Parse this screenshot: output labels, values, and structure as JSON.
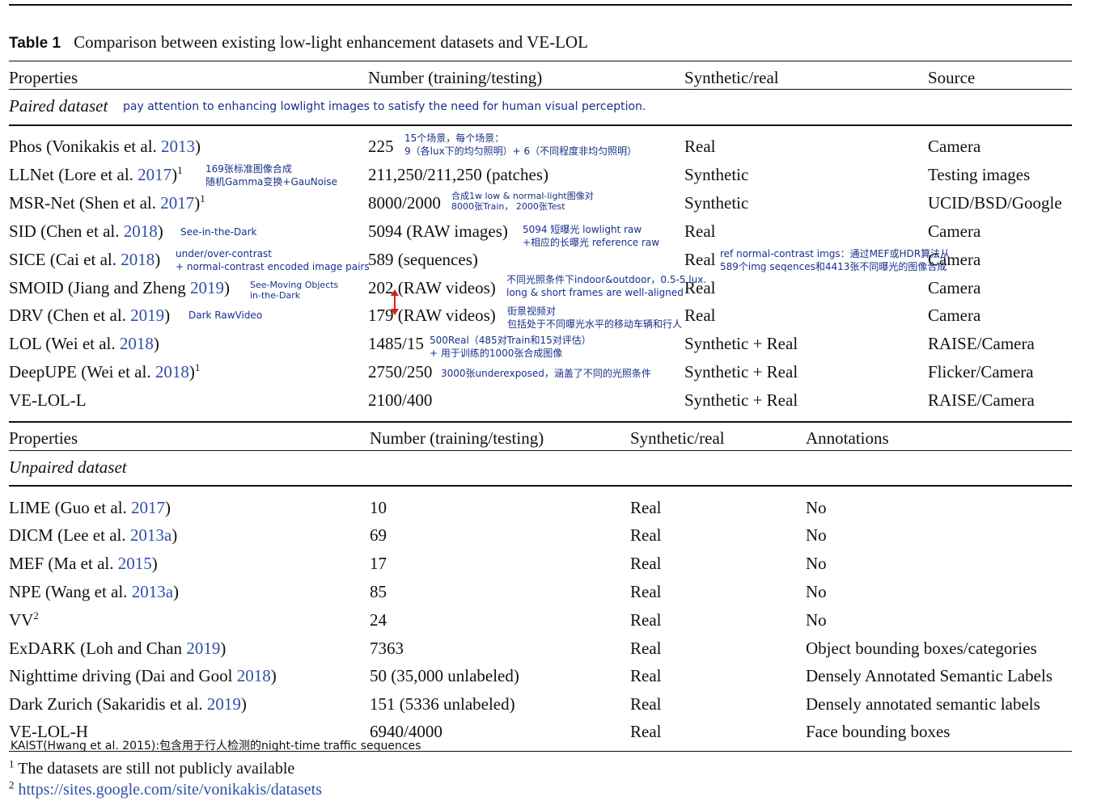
{
  "caption": {
    "label": "Table 1",
    "text": "Comparison between existing low-light enhancement datasets and VE-LOL"
  },
  "paired": {
    "headers": [
      "Properties",
      "Number (training/testing)",
      "Synthetic/real",
      "Source"
    ],
    "section_label": "Paired dataset",
    "section_note": "pay attention to enhancing lowlight images to satisfy the need for human visual perception.",
    "rows": [
      {
        "name": "Phos (Vonikakis et al. ",
        "year": "2013",
        "end": ")",
        "sup": "",
        "number": "225",
        "type": "Real",
        "source": "Camera"
      },
      {
        "name": "LLNet (Lore et al. ",
        "year": "2017",
        "end": ")",
        "sup": "1",
        "number": "211,250/211,250 (patches)",
        "type": "Synthetic",
        "source": "Testing images"
      },
      {
        "name": "MSR-Net (Shen et al. ",
        "year": "2017",
        "end": ")",
        "sup": "1",
        "number": "8000/2000",
        "type": "Synthetic",
        "source": "UCID/BSD/Google"
      },
      {
        "name": "SID (Chen et al. ",
        "year": "2018",
        "end": ")",
        "sup": "",
        "number": "5094 (RAW images)",
        "type": "Real",
        "source": "Camera"
      },
      {
        "name": "SICE (Cai et al. ",
        "year": "2018",
        "end": ")",
        "sup": "",
        "number": "589 (sequences)",
        "type": "Real",
        "source": "Camera"
      },
      {
        "name": "SMOID (Jiang and Zheng ",
        "year": "2019",
        "end": ")",
        "sup": "",
        "number": "202 (RAW videos)",
        "type": "Real",
        "source": "Camera"
      },
      {
        "name": "DRV (Chen et al. ",
        "year": "2019",
        "end": ")",
        "sup": "",
        "number": "179 (RAW videos)",
        "type": "Real",
        "source": "Camera"
      },
      {
        "name": "LOL (Wei et al. ",
        "year": "2018",
        "end": ")",
        "sup": "",
        "number": "1485/15",
        "type": "Synthetic + Real",
        "source": "RAISE/Camera"
      },
      {
        "name": "DeepUPE (Wei et al. ",
        "year": "2018",
        "end": ")",
        "sup": "1",
        "number": "2750/250",
        "type": "Synthetic + Real",
        "source": "Flicker/Camera"
      },
      {
        "name": "VE-LOL-L",
        "year": "",
        "end": "",
        "sup": "",
        "number": "2100/400",
        "type": "Synthetic + Real",
        "source": "RAISE/Camera"
      }
    ]
  },
  "unpaired": {
    "headers": [
      "Properties",
      "Number (training/testing)",
      "Synthetic/real",
      "Annotations"
    ],
    "section_label": "Unpaired dataset",
    "rows": [
      {
        "name": "LIME (Guo et al. ",
        "year": "2017",
        "end": ")",
        "sup": "",
        "number": "10",
        "type": "Real",
        "annotations": "No"
      },
      {
        "name": "DICM (Lee et al. ",
        "year": "2013a",
        "end": ")",
        "sup": "",
        "number": "69",
        "type": "Real",
        "annotations": "No"
      },
      {
        "name": "MEF (Ma et al. ",
        "year": "2015",
        "end": ")",
        "sup": "",
        "number": "17",
        "type": "Real",
        "annotations": "No"
      },
      {
        "name": "NPE (Wang et al. ",
        "year": "2013a",
        "end": ")",
        "sup": "",
        "number": "85",
        "type": "Real",
        "annotations": "No"
      },
      {
        "name": "VV",
        "year": "",
        "end": "",
        "sup": "2",
        "number": "24",
        "type": "Real",
        "annotations": "No"
      },
      {
        "name": "ExDARK (Loh and Chan ",
        "year": "2019",
        "end": ")",
        "sup": "",
        "number": "7363",
        "type": "Real",
        "annotations": "Object bounding boxes/categories"
      },
      {
        "name": "Nighttime driving (Dai and Gool ",
        "year": "2018",
        "end": ")",
        "sup": "",
        "number": "50 (35,000 unlabeled)",
        "type": "Real",
        "annotations": "Densely Annotated Semantic Labels"
      },
      {
        "name": "Dark Zurich (Sakaridis et al. ",
        "year": "2019",
        "end": ")",
        "sup": "",
        "number": "151 (5336 unlabeled)",
        "type": "Real",
        "annotations": "Densely annotated semantic labels"
      },
      {
        "name": "VE-LOL-H",
        "year": "",
        "end": "",
        "sup": "",
        "number": "6940/4000",
        "type": "Real",
        "annotations": "Face bounding boxes"
      }
    ]
  },
  "annotations": {
    "phos_1": "15个场景，每个场景：",
    "phos_2": "9（各lux下的均匀照明）+ 6（不同程度非均匀照明）",
    "llnet_1": "169张标准图像合成",
    "llnet_2": "随机Gamma变换+GauNoise",
    "msr_1": "合成1w low & normal-light图像对",
    "msr_2": "8000张Train，  2000张Test",
    "sid_a": "See-in-the-Dark",
    "sid_b1": "5094 短曝光 lowlight raw",
    "sid_b2": "+相应的长曝光 reference raw",
    "sice_a1": "under/over-contrast",
    "sice_a2": "+ normal-contrast encoded image pairs",
    "sice_b1": "ref normal-contrast imgs：通过MEF或HDR算法从",
    "sice_b2": "589个img seqences和4413张不同曝光的图像合成",
    "smoid_a1": "See-Moving Objects",
    "smoid_a2": "in-the-Dark",
    "smoid_b1": "不同光照条件下indoor&outdoor，0.5-5 lux.",
    "smoid_b2": "long & short frames are well-aligned",
    "drv_a": "Dark RawVideo",
    "drv_b1": "街景视频对",
    "drv_b2": "包括处于不同曝光水平的移动车辆和行人",
    "lol_1": "500Real（485对Train和15对评估）",
    "lol_2": "+ 用于训练的1000张合成图像",
    "deepupe": "3000张underexposed，涵盖了不同的光照条件",
    "kaist": "KAIST(Hwang et al. 2015):包含用于行人检测的night-time traffic sequences"
  },
  "footnotes": {
    "fn1_mark": "1",
    "fn1_text": "The datasets are still not publicly available",
    "fn2_mark": "2",
    "fn2_link": "https://sites.google.com/site/vonikakis/datasets"
  },
  "colors": {
    "citation": "#2f4fa8",
    "annotation": "#17308a",
    "arrow": "#d62020"
  }
}
